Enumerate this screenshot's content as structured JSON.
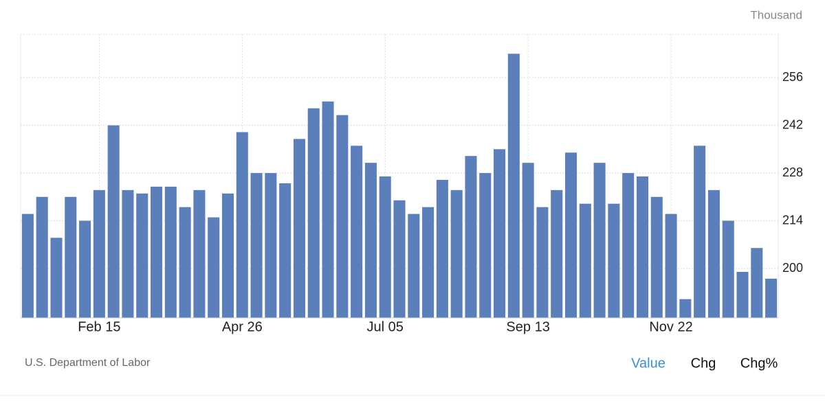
{
  "chart_data": {
    "type": "bar",
    "unit": "Thousand",
    "color": "#5b7fbb",
    "categories": [
      null,
      null,
      null,
      null,
      null,
      "Feb 15",
      null,
      null,
      null,
      null,
      null,
      null,
      null,
      null,
      null,
      "Apr 26",
      null,
      null,
      null,
      null,
      null,
      null,
      null,
      null,
      null,
      "Jul 05",
      null,
      null,
      null,
      null,
      null,
      null,
      null,
      null,
      null,
      "Sep 13",
      null,
      null,
      null,
      null,
      null,
      null,
      null,
      null,
      null,
      "Nov 22",
      null,
      null,
      null,
      null,
      null,
      null,
      null
    ],
    "values": [
      216,
      221,
      209,
      221,
      214,
      223,
      242,
      223,
      222,
      224,
      224,
      218,
      223,
      215,
      222,
      240,
      228,
      228,
      225,
      238,
      247,
      249,
      245,
      236,
      231,
      227,
      220,
      216,
      218,
      226,
      223,
      233,
      228,
      235,
      263,
      231,
      218,
      223,
      234,
      219,
      231,
      219,
      228,
      227,
      221,
      216,
      191,
      236,
      223,
      214,
      199,
      206,
      197
    ],
    "ylim": [
      185.5,
      268.7
    ],
    "yticks": [
      200,
      214,
      228,
      242,
      256
    ],
    "grid": true
  },
  "source": "U.S. Department of Labor",
  "controls": [
    "Value",
    "Chg",
    "Chg%"
  ],
  "active_control": 0
}
